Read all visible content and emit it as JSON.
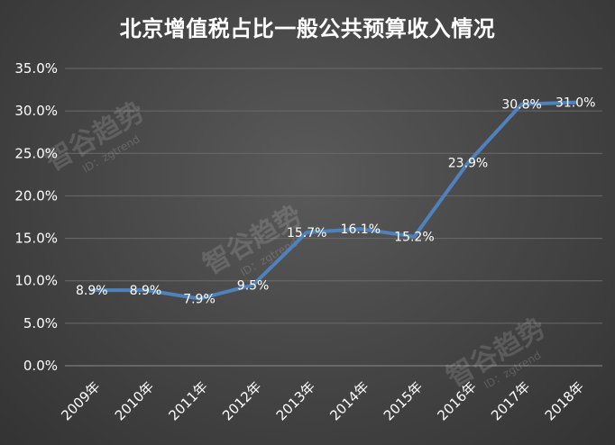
{
  "chart_data": {
    "type": "line",
    "title": "北京增值税占比一般公共预算收入情况",
    "categories": [
      "2009年",
      "2010年",
      "2011年",
      "2012年",
      "2013年",
      "2014年",
      "2015年",
      "2016年",
      "2017年",
      "2018年"
    ],
    "values": [
      8.9,
      8.9,
      7.9,
      9.5,
      15.7,
      16.1,
      15.2,
      23.9,
      30.8,
      31.0
    ],
    "data_labels": [
      "8.9%",
      "8.9%",
      "7.9%",
      "9.5%",
      "15.7%",
      "16.1%",
      "15.2%",
      "23.9%",
      "30.8%",
      "31.0%"
    ],
    "yticks": [
      "0.0%",
      "5.0%",
      "10.0%",
      "15.0%",
      "20.0%",
      "25.0%",
      "30.0%",
      "35.0%"
    ],
    "ylim": [
      0,
      35
    ],
    "grid": true,
    "line_color": "#4f81bd",
    "background_color": "#444444"
  },
  "watermark": {
    "text": "智谷趋势",
    "id_text": "ID：zgtrend"
  }
}
